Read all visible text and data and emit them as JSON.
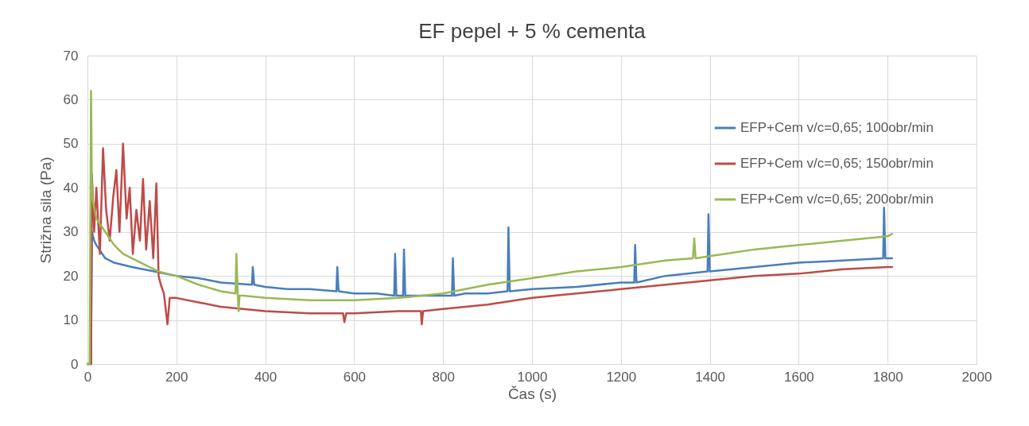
{
  "chart_data": {
    "type": "line",
    "title": "EF pepel + 5 % cementa",
    "xlabel": "Čas (s)",
    "ylabel": "Strižna sila (Pa)",
    "xlim": [
      0,
      2000
    ],
    "xticks": [
      0,
      200,
      400,
      600,
      800,
      1000,
      1200,
      1400,
      1600,
      1800,
      2000
    ],
    "ylim": [
      0,
      70
    ],
    "yticks": [
      0,
      10,
      20,
      30,
      40,
      50,
      60,
      70
    ],
    "grid": true,
    "legend": "right",
    "marker": "none",
    "line_style": "solid",
    "series": [
      {
        "name": "EFP+Cem v/c=0,65; 100obr/min",
        "color": "#4a7ebb",
        "x": [
          0,
          8,
          10,
          15,
          20,
          40,
          60,
          100,
          150,
          200,
          250,
          300,
          370,
          372,
          375,
          400,
          450,
          500,
          560,
          562,
          565,
          600,
          650,
          690,
          692,
          695,
          710,
          712,
          715,
          750,
          800,
          820,
          822,
          825,
          850,
          900,
          945,
          947,
          950,
          1000,
          1100,
          1200,
          1230,
          1232,
          1235,
          1300,
          1395,
          1397,
          1400,
          1500,
          1600,
          1700,
          1790,
          1792,
          1795,
          1810
        ],
        "values": [
          0,
          0,
          30,
          28,
          27,
          24,
          23,
          22,
          21,
          20,
          19.5,
          18.5,
          18,
          22,
          18,
          17.5,
          17,
          17,
          16.5,
          22,
          16.5,
          16,
          16,
          15.5,
          25,
          15.5,
          15.5,
          26,
          15.5,
          15.5,
          15.5,
          15.5,
          24,
          15.5,
          16,
          16,
          16.5,
          31,
          16.5,
          17,
          17.5,
          18.5,
          18.5,
          27,
          18.5,
          20,
          21,
          34,
          21,
          22,
          23,
          23.5,
          24,
          35.5,
          24,
          24
        ]
      },
      {
        "name": "EFP+Cem v/c=0,65; 150obr/min",
        "color": "#be4b48",
        "x": [
          0,
          8,
          10,
          15,
          20,
          28,
          35,
          42,
          50,
          58,
          65,
          72,
          80,
          88,
          95,
          102,
          110,
          118,
          125,
          132,
          140,
          148,
          155,
          160,
          165,
          172,
          180,
          185,
          200,
          250,
          300,
          400,
          500,
          575,
          578,
          582,
          600,
          700,
          750,
          752,
          755,
          800,
          900,
          1000,
          1100,
          1200,
          1300,
          1400,
          1500,
          1600,
          1700,
          1800,
          1810
        ],
        "values": [
          0,
          0,
          43,
          30,
          40,
          25,
          49,
          35,
          28,
          38,
          44,
          30,
          50,
          33,
          40,
          25,
          35,
          28,
          42,
          26,
          37,
          24,
          41,
          20,
          18,
          16,
          9,
          15,
          15,
          14,
          13,
          12,
          11.5,
          11.5,
          9.5,
          11.5,
          11.5,
          12,
          12,
          9,
          12,
          12.5,
          13.5,
          15,
          16,
          17,
          18,
          19,
          20,
          20.5,
          21.5,
          22,
          22
        ]
      },
      {
        "name": "EFP+Cem v/c=0,65; 200obr/min",
        "color": "#98b954",
        "x": [
          0,
          5,
          8,
          10,
          12,
          20,
          40,
          60,
          80,
          120,
          160,
          200,
          250,
          300,
          333,
          335,
          338,
          340,
          342,
          350,
          400,
          500,
          600,
          700,
          800,
          900,
          1000,
          1100,
          1200,
          1300,
          1362,
          1365,
          1368,
          1400,
          1500,
          1600,
          1700,
          1800,
          1810
        ],
        "values": [
          0,
          0,
          62,
          40,
          37,
          33,
          30,
          27,
          25,
          23,
          21,
          20,
          18,
          16.5,
          16,
          25,
          16,
          12,
          15.5,
          15.5,
          15,
          14.5,
          14.5,
          15,
          16,
          18,
          19.5,
          21,
          22,
          23.5,
          24,
          28.5,
          24,
          24.5,
          26,
          27,
          28,
          29,
          29.5
        ]
      }
    ]
  }
}
